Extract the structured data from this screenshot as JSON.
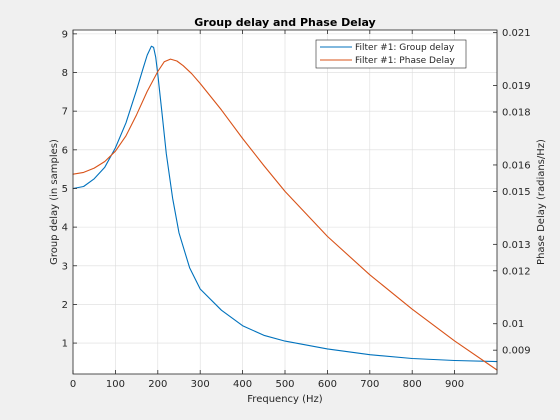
{
  "chart_data": {
    "type": "line",
    "title": "Group delay and Phase Delay",
    "xlabel": "Frequency (Hz)",
    "ylabel_left": "Group delay (in samples)",
    "ylabel_right": "Phase Delay (radians/Hz)",
    "xlim": [
      0,
      1000
    ],
    "ylim_left": [
      0.2,
      9.1
    ],
    "ylim_right": [
      0.0081,
      0.0211
    ],
    "x_ticks": [
      0,
      100,
      200,
      300,
      400,
      500,
      600,
      700,
      800,
      900
    ],
    "x_tick_labels": [
      "0",
      "100",
      "200",
      "300",
      "400",
      "500",
      "600",
      "700",
      "800",
      "900"
    ],
    "y_left_ticks": [
      1,
      2,
      3,
      4,
      5,
      6,
      7,
      8,
      9
    ],
    "y_left_tick_labels": [
      "1",
      "2",
      "3",
      "4",
      "5",
      "6",
      "7",
      "8",
      "9"
    ],
    "y_right_ticks": [
      0.009,
      0.01,
      0.012,
      0.013,
      0.015,
      0.016,
      0.018,
      0.019,
      0.021
    ],
    "y_right_tick_labels": [
      "0.009",
      "0.01",
      "0.012",
      "0.013",
      "0.015",
      "0.016",
      "0.018",
      "0.019",
      "0.021"
    ],
    "grid": true,
    "legend_position": "top-right",
    "series": [
      {
        "name": "Filter #1: Group delay",
        "axis": "left",
        "color": "#0072bd",
        "x": [
          0,
          25,
          50,
          75,
          100,
          125,
          150,
          165,
          175,
          185,
          190,
          195,
          200,
          210,
          220,
          235,
          250,
          275,
          300,
          350,
          400,
          450,
          500,
          600,
          700,
          800,
          900,
          1000
        ],
        "y": [
          5.0,
          5.05,
          5.25,
          5.55,
          6.05,
          6.7,
          7.55,
          8.1,
          8.45,
          8.68,
          8.65,
          8.4,
          7.95,
          6.95,
          5.9,
          4.75,
          3.85,
          2.95,
          2.4,
          1.85,
          1.45,
          1.2,
          1.05,
          0.85,
          0.7,
          0.6,
          0.55,
          0.52
        ]
      },
      {
        "name": "Filter #1: Phase Delay",
        "axis": "right",
        "color": "#d95319",
        "x": [
          0,
          25,
          50,
          75,
          100,
          125,
          150,
          175,
          200,
          215,
          230,
          245,
          260,
          280,
          300,
          350,
          400,
          450,
          500,
          600,
          700,
          800,
          900,
          1000
        ],
        "y": [
          0.01565,
          0.01572,
          0.01588,
          0.01613,
          0.01652,
          0.0171,
          0.0179,
          0.01878,
          0.01953,
          0.0199,
          0.02,
          0.01993,
          0.01975,
          0.01945,
          0.01908,
          0.01808,
          0.017,
          0.01598,
          0.015,
          0.0133,
          0.01185,
          0.01055,
          0.00935,
          0.00825
        ]
      }
    ]
  }
}
